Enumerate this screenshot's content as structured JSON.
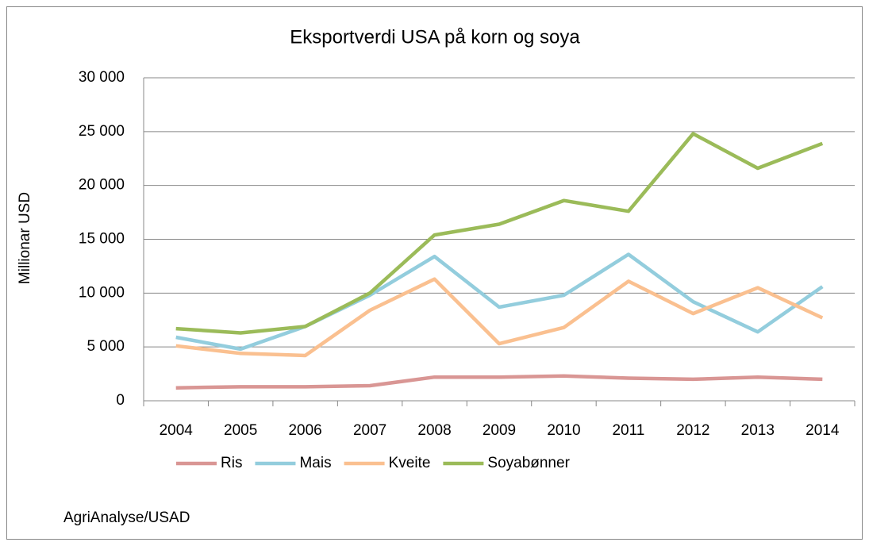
{
  "chart_data": {
    "type": "line",
    "title": "Eksportverdi USA på korn og soya",
    "y_label": "Millionar USD",
    "source": "AgriAnalyse/USAD",
    "categories": [
      "2004",
      "2005",
      "2006",
      "2007",
      "2008",
      "2009",
      "2010",
      "2011",
      "2012",
      "2013",
      "2014"
    ],
    "series": [
      {
        "name": "Ris",
        "color": "#d99694",
        "values": [
          1200,
          1300,
          1300,
          1400,
          2200,
          2200,
          2300,
          2100,
          2000,
          2200,
          2000
        ]
      },
      {
        "name": "Mais",
        "color": "#93cddd",
        "values": [
          5900,
          4800,
          6900,
          9800,
          13400,
          8700,
          9800,
          13600,
          9200,
          6400,
          10600
        ]
      },
      {
        "name": "Kveite",
        "color": "#fac090",
        "values": [
          5100,
          4400,
          4200,
          8400,
          11300,
          5300,
          6800,
          11100,
          8100,
          10500,
          7700
        ]
      },
      {
        "name": "Soyabønner",
        "color": "#9bbb59",
        "values": [
          6700,
          6300,
          6900,
          10000,
          15400,
          16400,
          18600,
          17600,
          24800,
          21600,
          23900
        ]
      }
    ],
    "ylim": [
      0,
      30000
    ],
    "yticks": [
      0,
      {
        "value": 5000,
        "label": "5 000"
      },
      {
        "value": 10000,
        "label": "10 000"
      },
      {
        "value": 15000,
        "label": "15 000"
      },
      {
        "value": 20000,
        "label": "20 000"
      },
      {
        "value": 25000,
        "label": "25 000"
      },
      {
        "value": 30000,
        "label": "30 000"
      }
    ],
    "grid": true,
    "legend": "bottom"
  }
}
